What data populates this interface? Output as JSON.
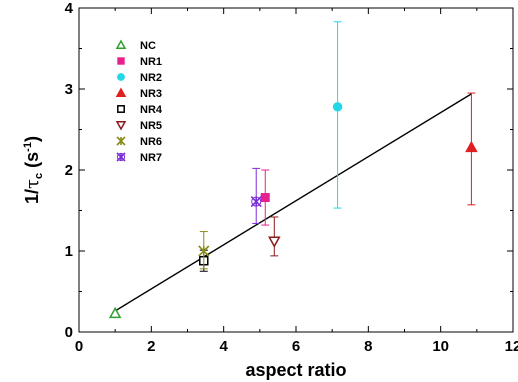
{
  "chart_data": {
    "type": "scatter",
    "title": "",
    "xlabel": "aspect ratio",
    "ylabel_main": "1/",
    "ylabel_greek": "τ",
    "ylabel_sub": "c",
    "ylabel_unit_open": " (s",
    "ylabel_unit_sup": "-1",
    "ylabel_unit_close": ")",
    "xlim": [
      0,
      12
    ],
    "ylim": [
      0,
      4
    ],
    "xticks": [
      "0",
      "2",
      "4",
      "6",
      "8",
      "10",
      "12"
    ],
    "yticks": [
      "0",
      "1",
      "2",
      "3",
      "4"
    ],
    "grid": false,
    "legend_position": "top-left",
    "series": [
      {
        "name": "NC",
        "marker": "triangle-up-open",
        "color": "#2e9e2e",
        "x": 1.0,
        "y": 0.23,
        "err_low": null,
        "err_high": null
      },
      {
        "name": "NR1",
        "marker": "square-filled",
        "color": "#e8208c",
        "x": 5.15,
        "y": 1.66,
        "err_low": 1.32,
        "err_high": 2.0
      },
      {
        "name": "NR2",
        "marker": "circle-filled",
        "color": "#22d8e8",
        "x": 7.15,
        "y": 2.78,
        "err_low": 1.53,
        "err_high": 3.83
      },
      {
        "name": "NR3",
        "marker": "triangle-up-filled",
        "color": "#e02020",
        "x": 10.85,
        "y": 2.28,
        "err_low": 1.57,
        "err_high": 2.95
      },
      {
        "name": "NR4",
        "marker": "square-open",
        "color": "#000000",
        "x": 3.45,
        "y": 0.88,
        "err_low": 0.75,
        "err_high": 1.01
      },
      {
        "name": "NR5",
        "marker": "triangle-down-open",
        "color": "#8b1a1a",
        "x": 5.4,
        "y": 1.12,
        "err_low": 0.94,
        "err_high": 1.42
      },
      {
        "name": "NR6",
        "marker": "x-star",
        "color": "#8a8a1a",
        "x": 3.45,
        "y": 1.0,
        "err_low": 0.78,
        "err_high": 1.24
      },
      {
        "name": "NR7",
        "marker": "x-star-open",
        "color": "#7a2ed8",
        "x": 4.9,
        "y": 1.61,
        "err_low": 1.34,
        "err_high": 2.02
      }
    ],
    "fit_line": {
      "x": [
        1.0,
        10.85
      ],
      "y": [
        0.26,
        2.94
      ],
      "color": "#000000"
    }
  }
}
